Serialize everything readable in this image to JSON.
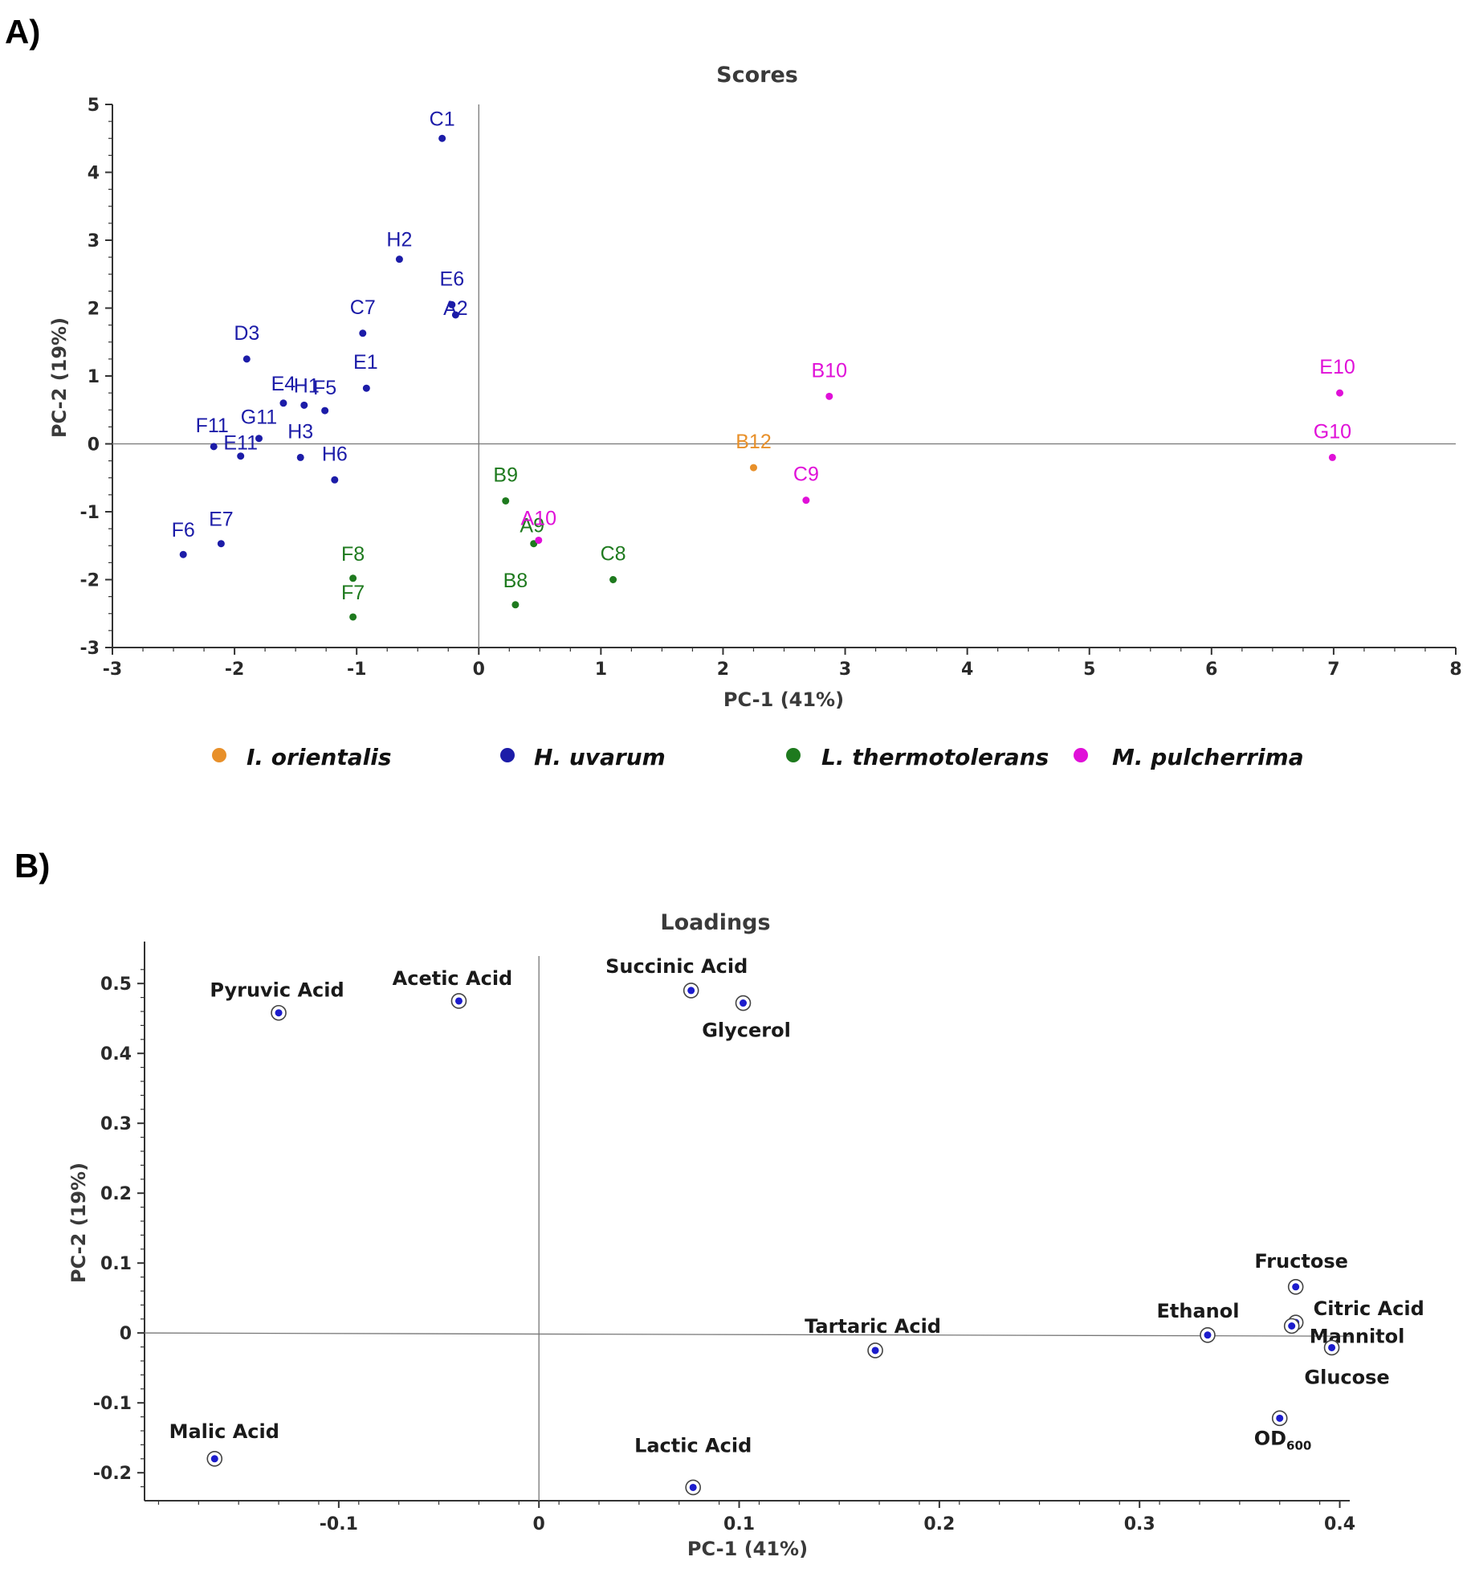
{
  "panels": {
    "a_label": "A)",
    "b_label": "B)"
  },
  "colors": {
    "I. orientalis": "#e8902a",
    "H. uvarum": "#1c1ca8",
    "L. thermotolerans": "#1e7a1e",
    "M. pulcherrima": "#e010d8",
    "loading_marker": "#1c1ccc"
  },
  "chart_data": [
    {
      "type": "scatter",
      "title": "Scores",
      "xlabel": "PC-1 (41%)",
      "ylabel": "PC-2 (19%)",
      "xlim": [
        -3,
        8
      ],
      "ylim": [
        -3,
        5
      ],
      "xticks": [
        "-3",
        "-2",
        "-1",
        "0",
        "1",
        "2",
        "3",
        "4",
        "5",
        "6",
        "7",
        "8"
      ],
      "yticks": [
        "-3",
        "-2",
        "-1",
        "0",
        "1",
        "2",
        "3",
        "4",
        "5"
      ],
      "legend": [
        "I. orientalis",
        "H. uvarum",
        "L. thermotolerans",
        "M. pulcherrima"
      ],
      "points": [
        {
          "label": "C1",
          "x": -0.3,
          "y": 4.5,
          "group": "H. uvarum"
        },
        {
          "label": "H2",
          "x": -0.65,
          "y": 2.72,
          "group": "H. uvarum"
        },
        {
          "label": "E6",
          "x": -0.22,
          "y": 2.05,
          "group": "H. uvarum"
        },
        {
          "label": "A2",
          "x": -0.19,
          "y": 1.9,
          "group": "H. uvarum"
        },
        {
          "label": "C7",
          "x": -0.95,
          "y": 1.63,
          "group": "H. uvarum"
        },
        {
          "label": "D3",
          "x": -1.9,
          "y": 1.25,
          "group": "H. uvarum"
        },
        {
          "label": "E1",
          "x": -0.92,
          "y": 0.82,
          "group": "H. uvarum"
        },
        {
          "label": "E4",
          "x": -1.6,
          "y": 0.6,
          "group": "H. uvarum"
        },
        {
          "label": "H1",
          "x": -1.43,
          "y": 0.57,
          "group": "H. uvarum"
        },
        {
          "label": "F5",
          "x": -1.26,
          "y": 0.49,
          "group": "H. uvarum"
        },
        {
          "label": "F11",
          "x": -2.17,
          "y": -0.04,
          "group": "H. uvarum"
        },
        {
          "label": "G11",
          "x": -1.8,
          "y": 0.08,
          "group": "H. uvarum"
        },
        {
          "label": "E11",
          "x": -1.95,
          "y": -0.18,
          "group": "H. uvarum"
        },
        {
          "label": "H3",
          "x": -1.46,
          "y": -0.2,
          "group": "H. uvarum"
        },
        {
          "label": "H6",
          "x": -1.18,
          "y": -0.53,
          "group": "H. uvarum"
        },
        {
          "label": "F6",
          "x": -2.42,
          "y": -1.63,
          "group": "H. uvarum"
        },
        {
          "label": "E7",
          "x": -2.11,
          "y": -1.47,
          "group": "H. uvarum"
        },
        {
          "label": "F8",
          "x": -1.03,
          "y": -1.98,
          "group": "L. thermotolerans"
        },
        {
          "label": "F7",
          "x": -1.03,
          "y": -2.55,
          "group": "L. thermotolerans"
        },
        {
          "label": "B9",
          "x": 0.22,
          "y": -0.84,
          "group": "L. thermotolerans"
        },
        {
          "label": "A9",
          "x": 0.45,
          "y": -1.47,
          "group": "L. thermotolerans"
        },
        {
          "label": "B8",
          "x": 0.3,
          "y": -2.37,
          "group": "L. thermotolerans"
        },
        {
          "label": "C8",
          "x": 1.1,
          "y": -2.0,
          "group": "L. thermotolerans"
        },
        {
          "label": "A10",
          "x": 0.49,
          "y": -1.42,
          "group": "M. pulcherrima"
        },
        {
          "label": "B12",
          "x": 2.25,
          "y": -0.35,
          "group": "I. orientalis"
        },
        {
          "label": "C9",
          "x": 2.68,
          "y": -0.83,
          "group": "M. pulcherrima"
        },
        {
          "label": "B10",
          "x": 2.87,
          "y": 0.7,
          "group": "M. pulcherrima"
        },
        {
          "label": "E10",
          "x": 7.05,
          "y": 0.75,
          "group": "M. pulcherrima"
        },
        {
          "label": "G10",
          "x": 6.99,
          "y": -0.2,
          "group": "M. pulcherrima"
        }
      ]
    },
    {
      "type": "scatter",
      "title": "Loadings",
      "xlabel": "PC-1 (41%)",
      "ylabel": "PC-2 (19%)",
      "xlim": [
        -0.197,
        0.405
      ],
      "ylim": [
        -0.24,
        0.56
      ],
      "xticks": [
        "-0.1",
        "0",
        "0.1",
        "0.2",
        "0.3",
        "0.4"
      ],
      "yticks": [
        "-0.2",
        "-0.1",
        "0",
        "0.1",
        "0.2",
        "0.3",
        "0.4",
        "0.5"
      ],
      "points": [
        {
          "label": "Pyruvic Acid",
          "x": -0.13,
          "y": 0.458
        },
        {
          "label": "Acetic Acid",
          "x": -0.04,
          "y": 0.475
        },
        {
          "label": "Succinic Acid",
          "x": 0.076,
          "y": 0.49
        },
        {
          "label": "Glycerol",
          "x": 0.102,
          "y": 0.472
        },
        {
          "label": "Malic Acid",
          "x": -0.162,
          "y": -0.18
        },
        {
          "label": "Lactic Acid",
          "x": 0.077,
          "y": -0.221
        },
        {
          "label": "Tartaric Acid",
          "x": 0.168,
          "y": -0.025
        },
        {
          "label": "Ethanol",
          "x": 0.334,
          "y": -0.003
        },
        {
          "label": "Fructose",
          "x": 0.378,
          "y": 0.066
        },
        {
          "label": "Citric Acid",
          "x": 0.378,
          "y": 0.015
        },
        {
          "label": "Mannitol",
          "x": 0.376,
          "y": 0.01
        },
        {
          "label": "Glucose",
          "x": 0.396,
          "y": -0.021
        },
        {
          "label": "OD",
          "sub": "600",
          "x": 0.37,
          "y": -0.122
        }
      ]
    }
  ]
}
